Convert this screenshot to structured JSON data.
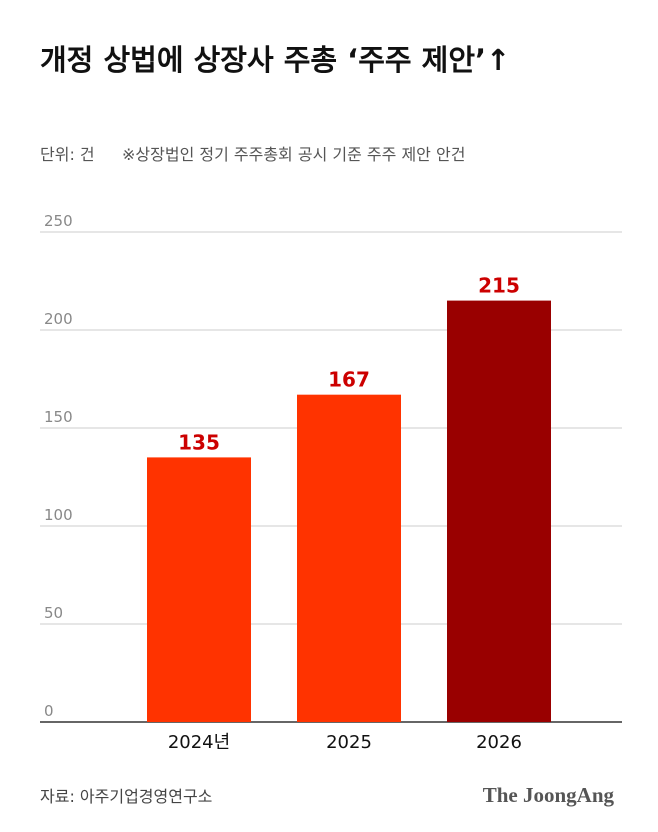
{
  "chart_data": {
    "type": "bar",
    "title": "개정 상법에 상장사 주총 ‘주주 제안’↑",
    "unit": "단위: 건",
    "note": "※상장법인 정기 주주총회 공시 기준 주주 제안 안건",
    "categories": [
      "2024년",
      "2025",
      "2026"
    ],
    "values": [
      135,
      167,
      215
    ],
    "colors": [
      "#ff3300",
      "#ff3300",
      "#990000"
    ],
    "label_color": "#cc0000",
    "ylim": [
      0,
      250
    ],
    "yticks": [
      0,
      50,
      100,
      150,
      200,
      250
    ],
    "grid": true,
    "source": "자료: 아주기업경영연구소",
    "logo": "The JoongAng"
  }
}
